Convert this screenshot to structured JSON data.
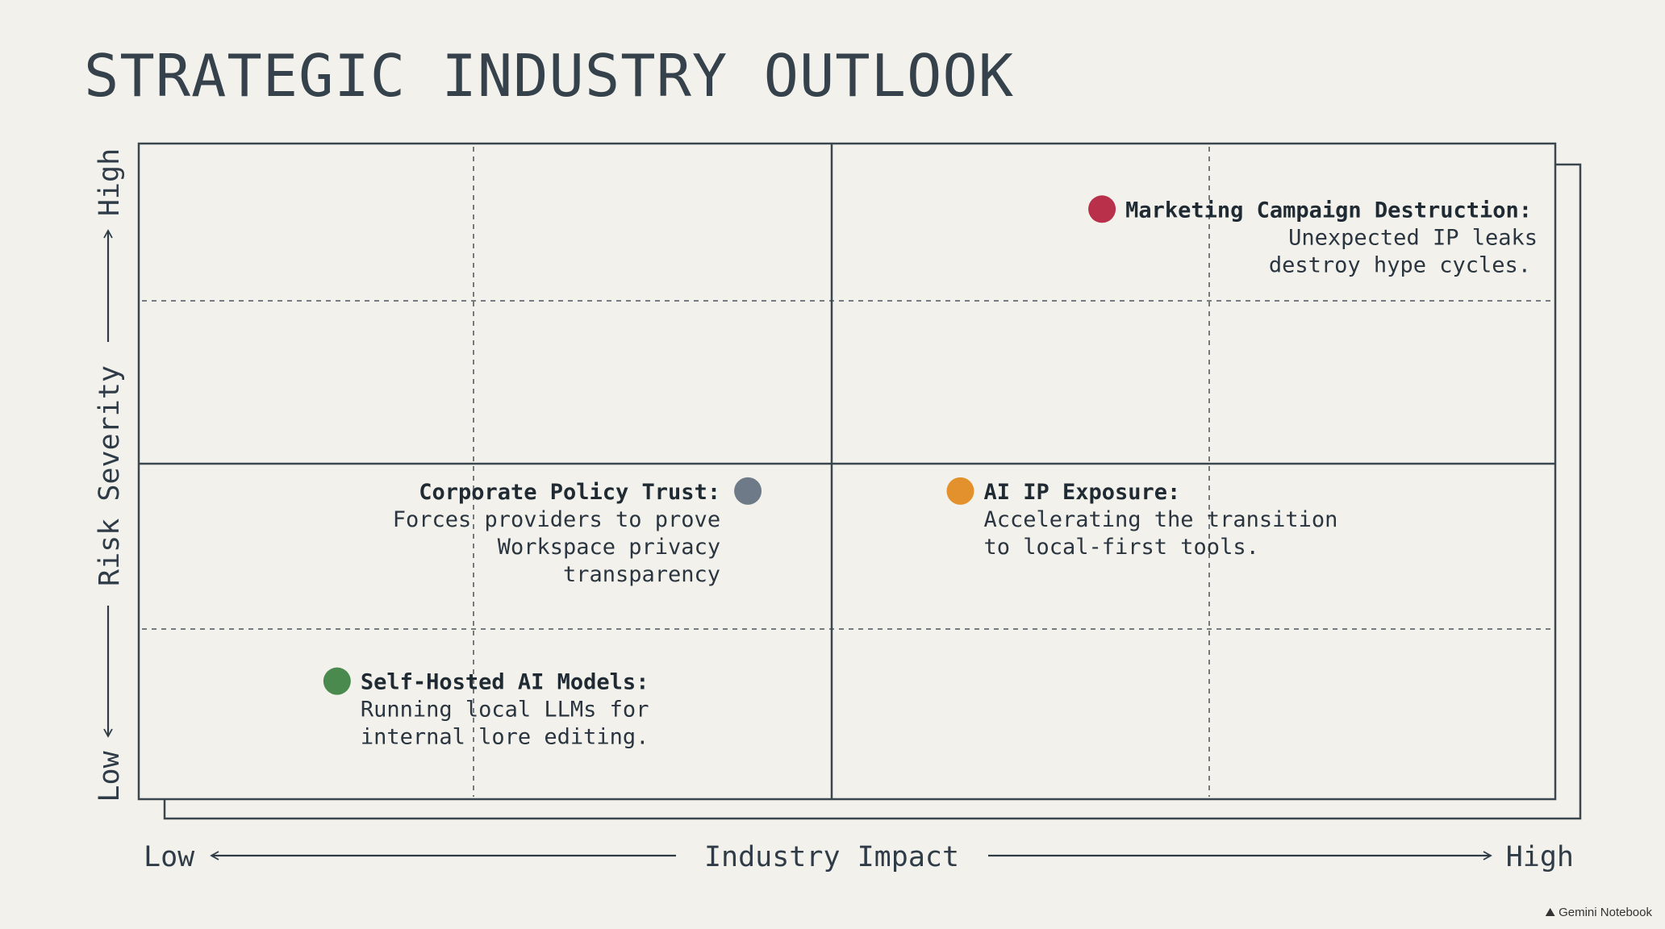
{
  "page": {
    "title": "STRATEGIC INDUSTRY OUTLOOK",
    "watermark": "Gemini Notebook"
  },
  "chart_data": {
    "type": "scatter",
    "title": "STRATEGIC INDUSTRY OUTLOOK",
    "xlabel": "Industry Impact",
    "ylabel": "Risk Severity",
    "x_low_label": "Low",
    "x_high_label": "High",
    "y_low_label": "Low",
    "y_high_label": "High",
    "xlim": [
      0,
      1
    ],
    "ylim": [
      0,
      1
    ],
    "grid": "dashed quarter lines, solid center quadrant lines",
    "points": [
      {
        "title": "Marketing Campaign Destruction:",
        "body": [
          "Unexpected IP leaks",
          "destroy hype cycles."
        ],
        "x": 0.68,
        "y": 0.9,
        "color": "#b8304a",
        "label_side": "right"
      },
      {
        "title": "Corporate Policy Trust:",
        "body": [
          "Forces providers to prove",
          "Workspace privacy",
          "transparency"
        ],
        "x": 0.43,
        "y": 0.47,
        "color": "#6e7a87",
        "label_side": "left"
      },
      {
        "title": "AI IP Exposure:",
        "body": [
          "Accelerating the transition",
          "to local-first tools."
        ],
        "x": 0.58,
        "y": 0.47,
        "color": "#e3912c",
        "label_side": "right"
      },
      {
        "title": "Self-Hosted AI Models:",
        "body": [
          "Running local LLMs for",
          "internal lore editing."
        ],
        "x": 0.14,
        "y": 0.18,
        "color": "#4a8a4f",
        "label_side": "right"
      }
    ]
  }
}
